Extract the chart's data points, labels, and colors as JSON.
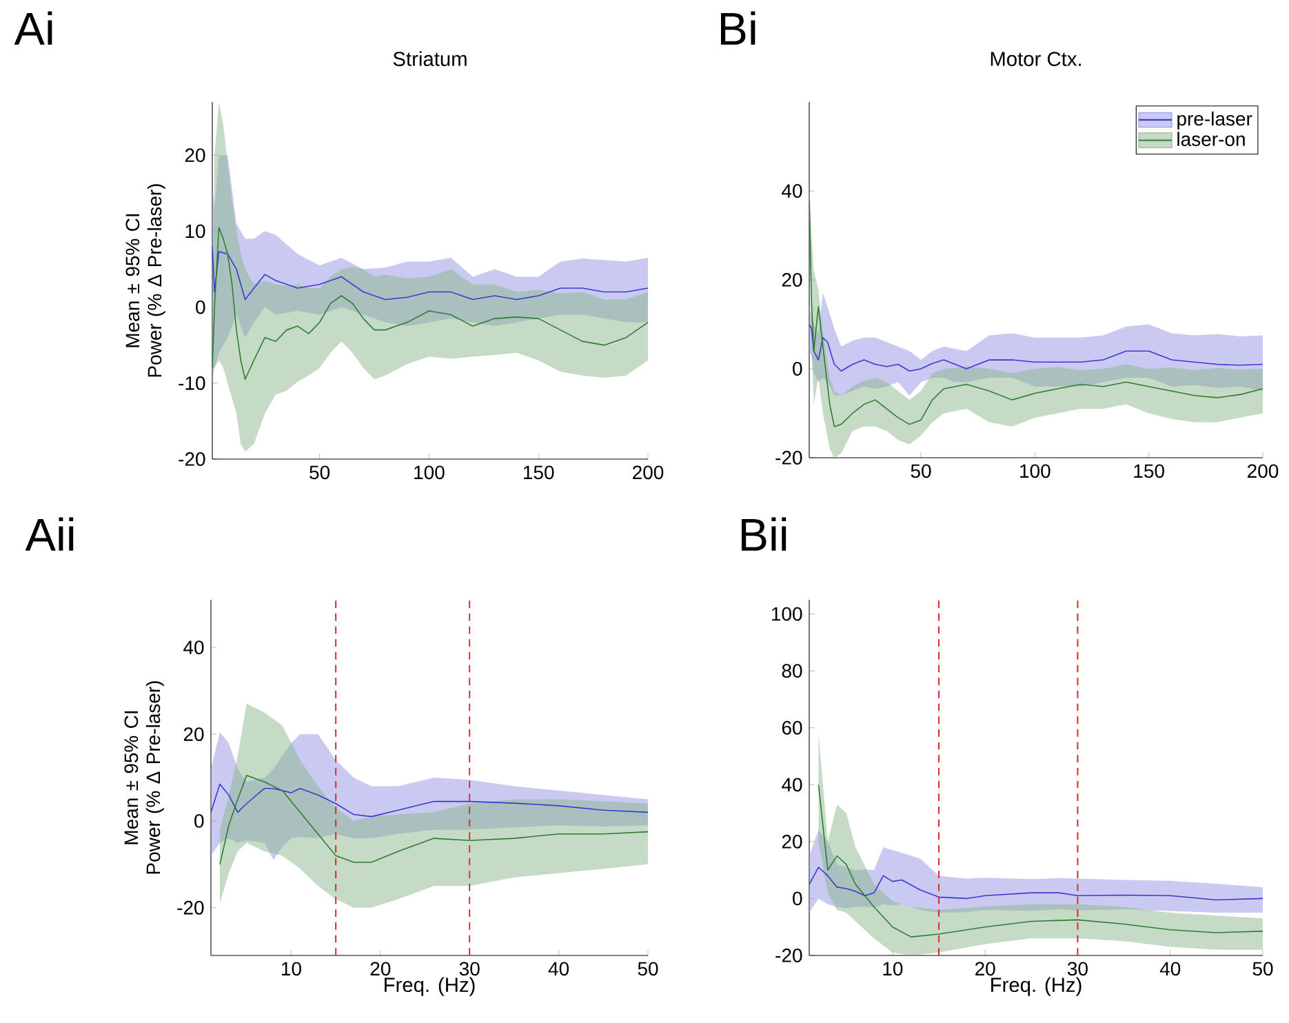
{
  "chart_data": [
    {
      "type": "line",
      "title": "Striatum",
      "ylabel": "Mean ± 95% CI Power (% Δ Pre-laser)",
      "annotations": [
        "Ai"
      ],
      "xlim": [
        1,
        200
      ],
      "ylim": [
        -20,
        27
      ],
      "xticks": [
        50,
        100,
        150,
        200
      ],
      "yticks": [
        -20,
        -10,
        0,
        10,
        20
      ],
      "legend": false,
      "series": [
        {
          "color": "#3a3acc",
          "x": [
            1,
            2,
            4,
            8,
            12,
            16,
            20,
            25,
            30,
            40,
            50,
            60,
            70,
            80,
            90,
            100,
            110,
            120,
            130,
            140,
            150,
            160,
            170,
            180,
            190,
            200
          ],
          "values": [
            8,
            2,
            7.3,
            7,
            5,
            1,
            2.5,
            4.3,
            3.5,
            2.5,
            3,
            4,
            2,
            1,
            1.3,
            2,
            2,
            1,
            1.5,
            1,
            1.5,
            2.5,
            2.5,
            2,
            2,
            2.5
          ],
          "upper": [
            16,
            13,
            20,
            20,
            11,
            9,
            9,
            10,
            9.5,
            7,
            5.5,
            6.5,
            5,
            5.2,
            6,
            6,
            6.5,
            4,
            5,
            4,
            4,
            6,
            6.4,
            6.2,
            6,
            6.5
          ],
          "lower": [
            -8,
            -8,
            -6,
            -4,
            -1,
            -4,
            -2,
            0,
            -1,
            -0.5,
            -1,
            0,
            -1,
            -2,
            -2.5,
            -2,
            -1.5,
            -2,
            -2.5,
            -2,
            -1.5,
            -1,
            -1,
            -1.5,
            -2,
            -2
          ]
        },
        {
          "color": "#2e7d32",
          "x": [
            1,
            2,
            4,
            6,
            8,
            10,
            12,
            14,
            16,
            20,
            25,
            30,
            35,
            40,
            45,
            50,
            55,
            60,
            65,
            70,
            75,
            80,
            90,
            100,
            110,
            120,
            130,
            140,
            150,
            160,
            170,
            180,
            190,
            200
          ],
          "values": [
            -8,
            0,
            10.5,
            9,
            7,
            3,
            -3,
            -7,
            -9.5,
            -7,
            -4,
            -4.5,
            -3,
            -2.5,
            -3.5,
            -2,
            0.5,
            1.5,
            0.5,
            -1.5,
            -3,
            -3,
            -2,
            -0.5,
            -1,
            -2.5,
            -1.5,
            -1.3,
            -1.5,
            -3,
            -4.5,
            -5,
            -4,
            -2
          ],
          "upper": [
            -2,
            20,
            27,
            24,
            19,
            14,
            10,
            7,
            5,
            3,
            3.5,
            3,
            2.8,
            3,
            2.5,
            2.5,
            4,
            5,
            5.3,
            5,
            4,
            4.3,
            3.8,
            4,
            5,
            3,
            3,
            2,
            2.3,
            1.8,
            2,
            1,
            1,
            2
          ],
          "lower": [
            -10,
            -8,
            -7,
            -8,
            -10,
            -12,
            -14,
            -18,
            -19,
            -18,
            -14,
            -11.5,
            -11,
            -9.8,
            -9,
            -8,
            -6,
            -4.5,
            -6,
            -8,
            -9.5,
            -9,
            -7.5,
            -6.5,
            -6.8,
            -6.5,
            -6.3,
            -6,
            -7,
            -8.5,
            -9,
            -9.3,
            -9,
            -7
          ]
        }
      ]
    },
    {
      "type": "line",
      "title": "Motor Ctx.",
      "annotations": [
        "Bi"
      ],
      "xlim": [
        1,
        200
      ],
      "ylim": [
        -20,
        60
      ],
      "xticks": [
        50,
        100,
        150,
        200
      ],
      "yticks": [
        -20,
        0,
        20,
        40
      ],
      "legend": "top right",
      "series": [
        {
          "name": "pre-laser",
          "color": "#3a3acc",
          "x": [
            1,
            2,
            3,
            5,
            7,
            9,
            12,
            15,
            20,
            25,
            30,
            35,
            40,
            45,
            50,
            55,
            60,
            65,
            70,
            80,
            90,
            100,
            120,
            130,
            140,
            150,
            160,
            170,
            180,
            190,
            200
          ],
          "values": [
            10,
            9,
            4,
            2,
            7,
            6,
            1,
            -0.5,
            1,
            2,
            1,
            0.5,
            1,
            -0.5,
            0,
            1.2,
            2,
            1,
            0,
            2,
            2,
            1.5,
            1.5,
            2,
            4,
            4,
            2,
            1.5,
            1,
            0.8,
            1
          ],
          "upper": [
            14,
            12,
            10,
            8,
            17,
            14,
            9,
            5,
            6.3,
            7,
            7,
            6,
            5,
            4,
            2,
            4,
            5,
            4.5,
            4,
            7.5,
            8,
            7,
            7,
            7.5,
            9.5,
            10,
            8,
            7.5,
            7.8,
            7.3,
            7.5
          ],
          "lower": [
            4,
            3,
            -1,
            -3,
            -2,
            -3,
            -6,
            -6,
            -5,
            -4,
            -4.5,
            -4,
            -3,
            -6,
            -3,
            -2,
            -2,
            -3,
            -3,
            -2,
            -2,
            -4,
            -4,
            -3,
            -2,
            -2,
            -4,
            -3.7,
            -4.3,
            -4,
            -5
          ]
        },
        {
          "name": "laser-on",
          "color": "#2e7d32",
          "x": [
            1,
            2,
            3,
            5,
            7,
            10,
            12,
            15,
            20,
            25,
            30,
            35,
            40,
            45,
            50,
            55,
            60,
            70,
            80,
            90,
            100,
            110,
            120,
            130,
            140,
            150,
            160,
            170,
            180,
            190,
            200
          ],
          "values": [
            38,
            15,
            4,
            14,
            5,
            -8,
            -13,
            -12.5,
            -10,
            -8,
            -7,
            -9,
            -11,
            -12.5,
            -11.5,
            -7,
            -4.5,
            -3.5,
            -5,
            -7,
            -5.5,
            -4.5,
            -3.5,
            -4,
            -3,
            -4,
            -5,
            -6,
            -6.5,
            -5.8,
            -4.5
          ],
          "upper": [
            42,
            30,
            22,
            18,
            8,
            -2,
            -5,
            -6,
            -4,
            -2.7,
            -2,
            -3,
            -5,
            -7,
            -5,
            -1,
            0,
            0.5,
            0,
            -1,
            0,
            0.4,
            -0.3,
            0,
            1,
            0,
            0.3,
            -0.3,
            0.2,
            -0.2,
            0
          ],
          "lower": [
            34,
            5,
            -8,
            -2,
            -10,
            -18,
            -20,
            -19,
            -14,
            -13,
            -13,
            -14,
            -16,
            -17,
            -15,
            -12,
            -10,
            -9,
            -12,
            -13,
            -11,
            -10,
            -9,
            -9,
            -8,
            -10,
            -11.3,
            -12,
            -12,
            -11,
            -10
          ]
        }
      ]
    },
    {
      "type": "line",
      "xlabel": "Freq. (Hz)",
      "ylabel": "Mean ± 95% CI Power (% Δ Pre-laser)",
      "annotations": [
        "Aii"
      ],
      "xlim": [
        1,
        50
      ],
      "ylim": [
        -31,
        51
      ],
      "xticks": [
        10,
        20,
        30,
        40,
        50
      ],
      "yticks": [
        -20,
        0,
        20,
        40
      ],
      "legend": false,
      "ref_lines": [
        {
          "axis": "x",
          "value": 15,
          "color": "#e03030",
          "line_style": "dashed"
        },
        {
          "axis": "x",
          "value": 30,
          "color": "#e03030",
          "line_style": "dashed"
        }
      ],
      "series": [
        {
          "color": "#3a3acc",
          "x": [
            1,
            2,
            3,
            4,
            5,
            7,
            8,
            9,
            10,
            11,
            13,
            15,
            17,
            19,
            22,
            26,
            30,
            35,
            40,
            45,
            50
          ],
          "values": [
            2,
            8.5,
            6,
            2,
            4,
            7.5,
            7.5,
            7,
            6.5,
            7.5,
            6,
            4,
            1.5,
            1,
            2.5,
            4.5,
            4.5,
            4.1,
            3.5,
            2.5,
            2
          ],
          "upper": [
            12,
            20.5,
            18,
            12,
            9,
            10,
            12,
            15,
            18,
            20,
            20,
            14,
            10,
            8,
            8,
            10,
            9.5,
            8,
            7,
            6,
            5
          ],
          "lower": [
            -8,
            -5,
            -4,
            -5,
            -4.5,
            -5,
            -9,
            -6,
            -4,
            -3.7,
            -4,
            -3,
            -4,
            -4,
            -3,
            -2,
            -2,
            -1.5,
            -1,
            -1.3,
            -1
          ]
        },
        {
          "color": "#2e7d32",
          "x": [
            2,
            3,
            4,
            5,
            7,
            9,
            11,
            13,
            15,
            17,
            19,
            22,
            26,
            30,
            35,
            40,
            45,
            50
          ],
          "values": [
            -10,
            -1,
            5,
            10.5,
            9,
            7,
            2,
            -3,
            -8,
            -9.5,
            -9.5,
            -7,
            -4,
            -4.5,
            -4,
            -3,
            -3,
            -2.5
          ],
          "upper": [
            -2,
            6,
            15,
            27,
            25,
            22,
            14,
            8,
            3,
            0,
            1,
            1.5,
            2,
            4,
            5,
            5,
            4.5,
            4
          ],
          "lower": [
            -19,
            -12,
            -7,
            -5,
            -7,
            -8,
            -11,
            -15,
            -18,
            -20,
            -20,
            -18,
            -15,
            -15,
            -13,
            -12,
            -11,
            -10
          ]
        }
      ]
    },
    {
      "type": "line",
      "xlabel": "Freq. (Hz)",
      "annotations": [
        "Bii"
      ],
      "xlim": [
        1,
        50
      ],
      "ylim": [
        -20,
        105
      ],
      "xticks": [
        10,
        20,
        30,
        40,
        50
      ],
      "yticks": [
        -20,
        0,
        20,
        40,
        60,
        80,
        100
      ],
      "legend": false,
      "ref_lines": [
        {
          "axis": "x",
          "value": 15,
          "color": "#e03030",
          "line_style": "dashed"
        },
        {
          "axis": "x",
          "value": 30,
          "color": "#e03030",
          "line_style": "dashed"
        }
      ],
      "series": [
        {
          "color": "#3a3acc",
          "x": [
            1,
            2,
            3,
            4,
            5,
            6,
            7,
            8,
            9,
            10,
            11,
            13,
            15,
            18,
            20,
            25,
            28,
            30,
            35,
            40,
            45,
            50
          ],
          "values": [
            5,
            11,
            8,
            4,
            3.5,
            2.5,
            1,
            2,
            8,
            6,
            6.5,
            3,
            0.5,
            0,
            1,
            2,
            2,
            1,
            1.2,
            1,
            -0.5,
            0
          ],
          "upper": [
            15,
            24,
            20,
            12,
            11,
            10,
            10.3,
            10,
            18,
            17,
            16,
            14,
            8,
            7,
            7.3,
            6.8,
            7.2,
            7,
            6.5,
            6.2,
            5.2,
            4
          ],
          "lower": [
            -5,
            0,
            -2,
            -3,
            -3.5,
            -3,
            -2.8,
            -3.2,
            -2,
            -2.4,
            -2,
            -4,
            -5,
            -4.8,
            -4,
            -4.3,
            -3.8,
            -4.2,
            -3.8,
            -4.4,
            -5,
            -5
          ]
        },
        {
          "color": "#2e7d32",
          "x": [
            2,
            3,
            4,
            5,
            6,
            8,
            10,
            12,
            15,
            20,
            25,
            30,
            35,
            40,
            45,
            50
          ],
          "values": [
            40,
            10,
            15,
            12,
            5,
            -3,
            -10,
            -13.5,
            -12.5,
            -10,
            -8,
            -7.5,
            -9,
            -11,
            -12,
            -11.5
          ],
          "upper": [
            58,
            20,
            33,
            30,
            18,
            5,
            -1,
            -3,
            -4,
            -2.8,
            -2,
            -2,
            -3,
            -5,
            -6,
            -7
          ],
          "lower": [
            20,
            2,
            -4,
            -5,
            -8,
            -14,
            -19,
            -20,
            -19,
            -16,
            -14,
            -14,
            -15,
            -17,
            -18,
            -18
          ]
        }
      ]
    }
  ]
}
